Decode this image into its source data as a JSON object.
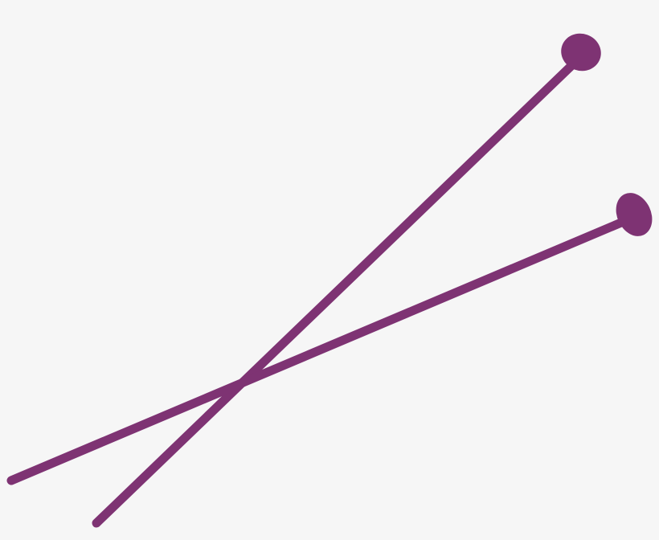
{
  "illustration": {
    "subject": "knitting-needles",
    "background_color": "#f6f6f6",
    "needle_color": "#7e3373",
    "needles": [
      {
        "name": "needle-long"
      },
      {
        "name": "needle-short"
      }
    ]
  }
}
